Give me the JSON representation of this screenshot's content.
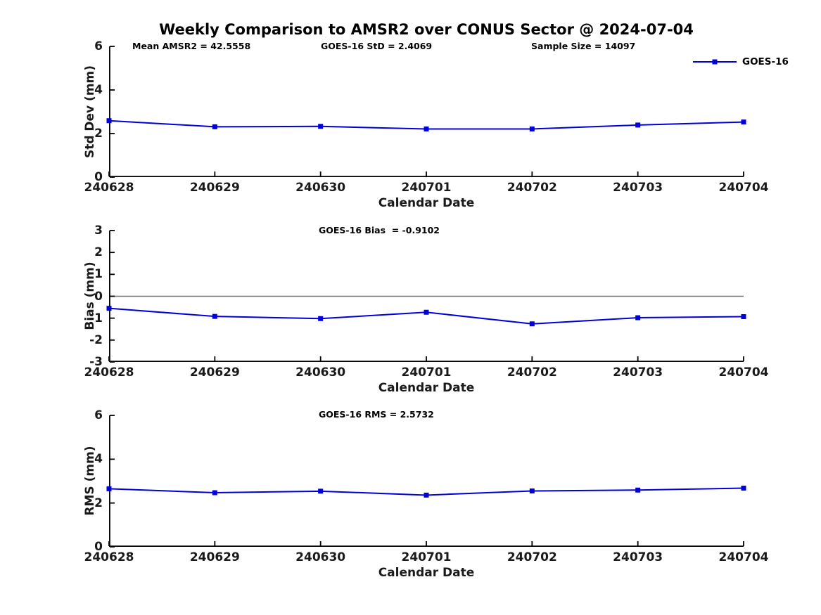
{
  "title": "Weekly Comparison to AMSR2 over CONUS Sector @ 2024-07-04",
  "colors": {
    "series_blue": "#0000dd",
    "axis": "#000000",
    "zero_line": "#707070"
  },
  "legend": {
    "label": "GOES-16"
  },
  "chart_data": [
    {
      "type": "line",
      "name": "std-dev",
      "xlabel": "Calendar Date",
      "ylabel": "Std Dev (mm)",
      "categories": [
        "240628",
        "240629",
        "240630",
        "240701",
        "240702",
        "240703",
        "240704"
      ],
      "series": [
        {
          "name": "GOES-16",
          "color": "#0000dd",
          "marker": "square",
          "values": [
            2.59,
            2.31,
            2.33,
            2.21,
            2.21,
            2.39,
            2.53
          ]
        }
      ],
      "ylim": [
        0,
        6
      ],
      "yticks": [
        0,
        2,
        4,
        6
      ],
      "grid": false,
      "zero_line": false,
      "legend_position": "top-right",
      "annotations": [
        "Mean AMSR2 = 42.5558",
        "GOES-16 StD = 2.4069",
        "Sample Size = 14097"
      ]
    },
    {
      "type": "line",
      "name": "bias",
      "xlabel": "Calendar Date",
      "ylabel": "Bias (mm)",
      "categories": [
        "240628",
        "240629",
        "240630",
        "240701",
        "240702",
        "240703",
        "240704"
      ],
      "series": [
        {
          "name": "GOES-16",
          "color": "#0000dd",
          "marker": "square",
          "values": [
            -0.55,
            -0.92,
            -1.02,
            -0.73,
            -1.26,
            -0.98,
            -0.93
          ]
        }
      ],
      "ylim": [
        -3,
        3
      ],
      "yticks": [
        -3,
        -2,
        -1,
        0,
        1,
        2,
        3
      ],
      "grid": false,
      "zero_line": true,
      "legend_position": "none",
      "annotations": [
        "GOES-16 Bias  = -0.9102"
      ]
    },
    {
      "type": "line",
      "name": "rms",
      "xlabel": "Calendar Date",
      "ylabel": "RMS (mm)",
      "categories": [
        "240628",
        "240629",
        "240630",
        "240701",
        "240702",
        "240703",
        "240704"
      ],
      "series": [
        {
          "name": "GOES-16",
          "color": "#0000dd",
          "marker": "square",
          "values": [
            2.65,
            2.47,
            2.54,
            2.36,
            2.55,
            2.59,
            2.68
          ]
        }
      ],
      "ylim": [
        0,
        6
      ],
      "yticks": [
        0,
        2,
        4,
        6
      ],
      "grid": false,
      "zero_line": false,
      "legend_position": "none",
      "annotations": [
        "GOES-16 RMS = 2.5732"
      ]
    }
  ]
}
